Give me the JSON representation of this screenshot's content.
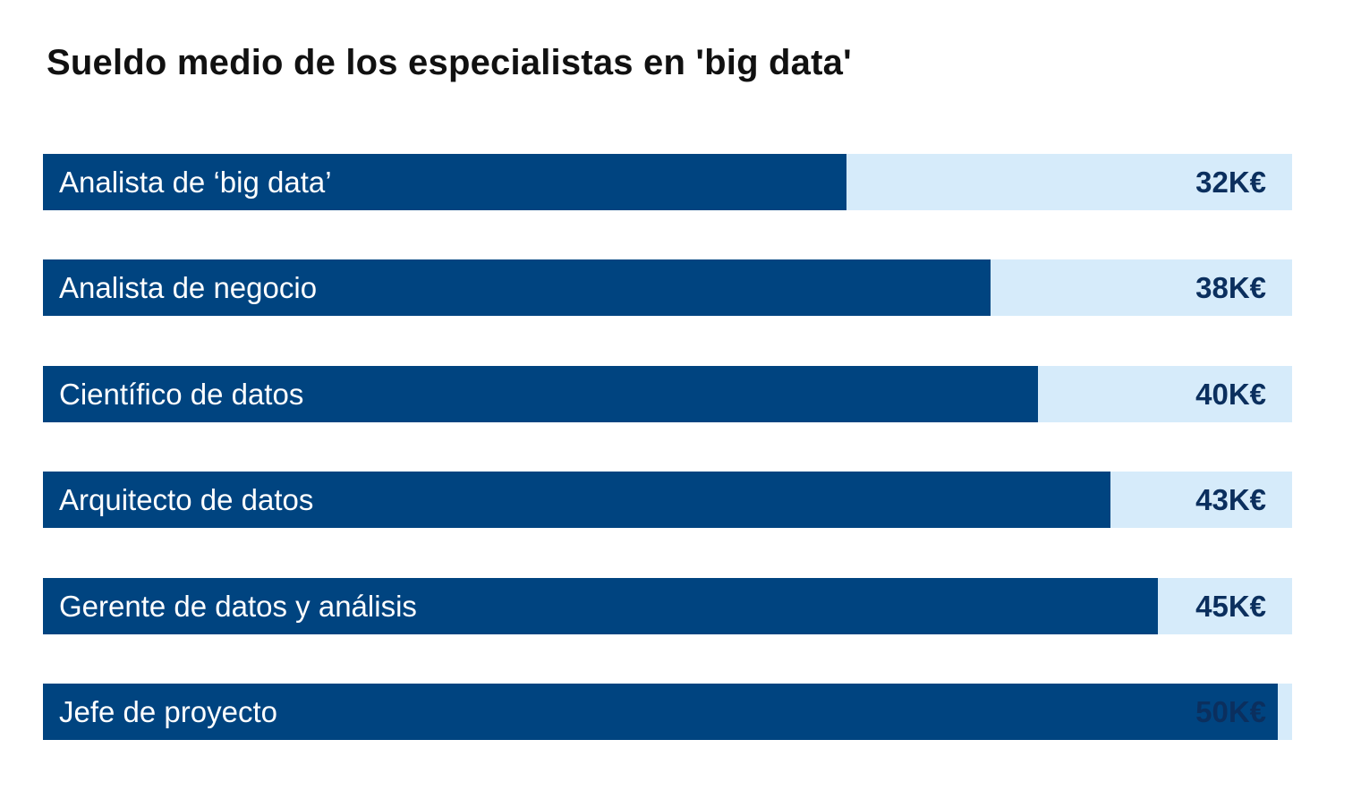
{
  "chart_data": {
    "type": "bar",
    "orientation": "horizontal",
    "title": "Sueldo medio de los especialistas en 'big data'",
    "categories": [
      "Analista de ‘big data’",
      "Analista de negocio",
      "Científico de datos",
      "Arquitecto de datos",
      "Gerente de datos y análisis",
      "Jefe de proyecto"
    ],
    "values": [
      32,
      38,
      40,
      43,
      45,
      50
    ],
    "value_labels": [
      "32K€",
      "38K€",
      "40K€",
      "43K€",
      "45K€",
      "50K€"
    ],
    "unit": "K€",
    "grid": false,
    "legend": "none",
    "colors": {
      "bar": "#004480",
      "track": "#d6ebfa",
      "label": "#ffffff",
      "value": "#0b2f5e",
      "title": "#111111"
    }
  }
}
